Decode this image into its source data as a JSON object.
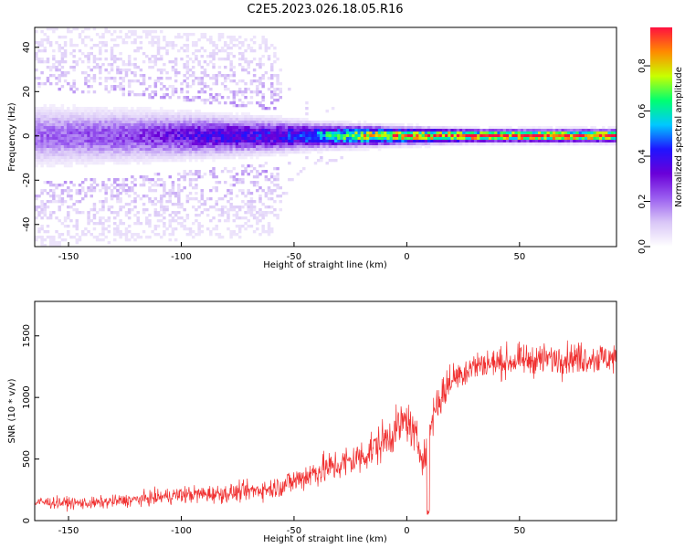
{
  "title": "C2E5.2023.026.18.05.R16",
  "colors": {
    "snr_line": "#f03030",
    "colormap": [
      "#ffffff",
      "#d9c6f7",
      "#9a5ef0",
      "#6a00d8",
      "#1f14ff",
      "#00c8ff",
      "#00ff70",
      "#c8ff00",
      "#ff8a00",
      "#ff1040"
    ]
  },
  "chart_data": [
    {
      "type": "heatmap",
      "xlabel": "Height of straight line (km)",
      "ylabel": "Frequency (Hz)",
      "xlim": [
        -165,
        93
      ],
      "ylim": [
        -50,
        49
      ],
      "xticks": [
        -150,
        -100,
        -50,
        0,
        50
      ],
      "yticks": [
        -40,
        -20,
        0,
        20,
        40
      ],
      "xtick_labels": [
        "-150",
        "-100",
        "-50",
        "0",
        "50"
      ],
      "ytick_labels": [
        "-40",
        "-20",
        "0",
        "20",
        "40"
      ],
      "colorbar": {
        "label": "Normalized spectral amplitude",
        "range": [
          0,
          0.97
        ],
        "ticks": [
          0.0,
          0.2,
          0.4,
          0.6,
          0.8
        ],
        "tick_labels": [
          "0.0",
          "0.2",
          "0.4",
          "0.6",
          "0.8"
        ]
      },
      "ridge": {
        "center_hz": 0,
        "profile": [
          {
            "x": -165,
            "amplitude": 0.2,
            "halfwidth_hz": 7
          },
          {
            "x": -120,
            "amplitude": 0.25,
            "halfwidth_hz": 6
          },
          {
            "x": -90,
            "amplitude": 0.35,
            "halfwidth_hz": 5
          },
          {
            "x": -60,
            "amplitude": 0.4,
            "halfwidth_hz": 4
          },
          {
            "x": -40,
            "amplitude": 0.55,
            "halfwidth_hz": 3
          },
          {
            "x": -20,
            "amplitude": 0.75,
            "halfwidth_hz": 2.5
          },
          {
            "x": 0,
            "amplitude": 0.85,
            "halfwidth_hz": 2
          },
          {
            "x": 30,
            "amplitude": 0.95,
            "halfwidth_hz": 1.5
          },
          {
            "x": 93,
            "amplitude": 0.95,
            "halfwidth_hz": 1.5
          }
        ],
        "scatter_extent": [
          {
            "x": -165,
            "halfspread_hz": 50
          },
          {
            "x": -60,
            "halfspread_hz": 45
          },
          {
            "x": -50,
            "halfspread_hz": 20
          },
          {
            "x": -20,
            "halfspread_hz": 8
          },
          {
            "x": 10,
            "halfspread_hz": 3
          },
          {
            "x": 93,
            "halfspread_hz": 1
          }
        ]
      }
    },
    {
      "type": "line",
      "xlabel": "Height of straight line (km)",
      "ylabel": "SNR (10 * v/v)",
      "xlim": [
        -165,
        93
      ],
      "ylim": [
        0,
        1780
      ],
      "xticks": [
        -150,
        -100,
        -50,
        0,
        50
      ],
      "yticks": [
        0,
        500,
        1000,
        1500
      ],
      "xtick_labels": [
        "-150",
        "-100",
        "-50",
        "0",
        "50"
      ],
      "ytick_labels": [
        "0",
        "500",
        "1000",
        "1500"
      ],
      "series": [
        {
          "trend": [
            {
              "x": -165,
              "y": 150,
              "spread": 150
            },
            {
              "x": -140,
              "y": 140,
              "spread": 150
            },
            {
              "x": -120,
              "y": 170,
              "spread": 170
            },
            {
              "x": -100,
              "y": 210,
              "spread": 220
            },
            {
              "x": -80,
              "y": 220,
              "spread": 230
            },
            {
              "x": -60,
              "y": 260,
              "spread": 260
            },
            {
              "x": -50,
              "y": 320,
              "spread": 340
            },
            {
              "x": -40,
              "y": 400,
              "spread": 400
            },
            {
              "x": -30,
              "y": 450,
              "spread": 420
            },
            {
              "x": -20,
              "y": 520,
              "spread": 460
            },
            {
              "x": -10,
              "y": 650,
              "spread": 520
            },
            {
              "x": 0,
              "y": 820,
              "spread": 520
            },
            {
              "x": 8,
              "y": 500,
              "spread": 420
            },
            {
              "x": 12,
              "y": 900,
              "spread": 520
            },
            {
              "x": 20,
              "y": 1150,
              "spread": 420
            },
            {
              "x": 30,
              "y": 1260,
              "spread": 380
            },
            {
              "x": 50,
              "y": 1300,
              "spread": 380
            },
            {
              "x": 70,
              "y": 1320,
              "spread": 400
            },
            {
              "x": 93,
              "y": 1320,
              "spread": 400
            }
          ],
          "dips": [
            {
              "x": 9.5,
              "y": 40
            }
          ]
        }
      ]
    }
  ]
}
